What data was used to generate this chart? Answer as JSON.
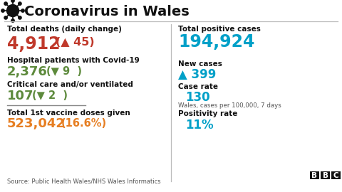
{
  "title": "Coronavirus in Wales",
  "bg_color": "#ffffff",
  "title_color": "#111111",
  "left_col": {
    "deaths_label": "Total deaths (daily change)",
    "deaths_value": "4,912",
    "deaths_change": "(▲ 45)",
    "deaths_value_color": "#c0392b",
    "deaths_change_color": "#c0392b",
    "hospital_label": "Hospital patients with Covid-19",
    "hospital_value": "2,376",
    "hospital_change": "(▼ 9  )",
    "hospital_color": "#5d8a3c",
    "critical_label": "Critical care and/or ventilated",
    "critical_value": "107",
    "critical_change": "(▼ 2  )",
    "critical_color": "#5d8a3c",
    "vaccine_label": "Total 1st vaccine doses given",
    "vaccine_value": "523,042",
    "vaccine_pct": "(16.6%)",
    "vaccine_color": "#e67e22"
  },
  "right_col": {
    "positive_label": "Total positive cases",
    "positive_value": "194,924",
    "positive_color": "#00a0c8",
    "new_cases_label": "New cases",
    "new_cases_value": "▲ 399",
    "new_cases_color": "#00a0c8",
    "case_rate_label": "Case rate",
    "case_rate_value": "130",
    "case_rate_color": "#00a0c8",
    "case_rate_sub": "Wales, cases per 100,000, 7 days",
    "positivity_label": "Positivity rate",
    "positivity_value": "11%",
    "positivity_color": "#00a0c8"
  },
  "source": "Source: Public Health Wales/NHS Wales Informatics",
  "divider_color": "#bbbbbb",
  "label_color": "#111111",
  "bbc_color": "#111111"
}
